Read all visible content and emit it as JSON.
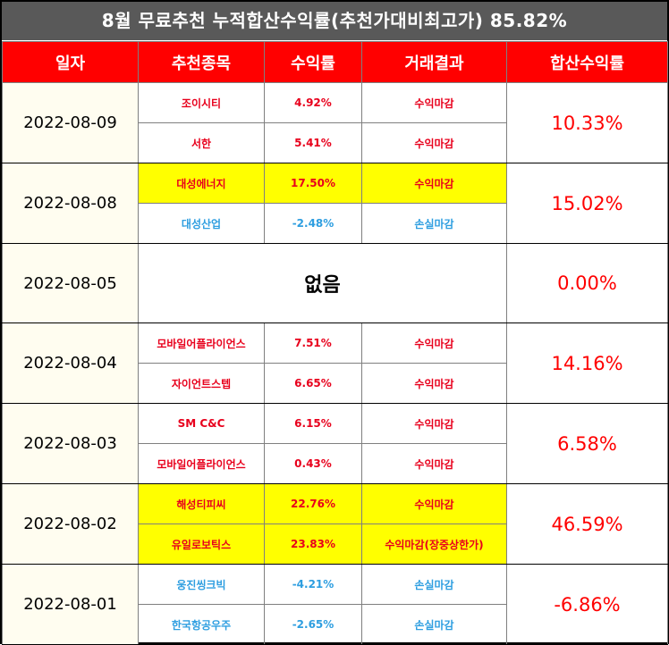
{
  "title": "8월 무료추천 누적합산수익률(추천가대비최고가) 85.82%",
  "columns": [
    "일자",
    "추천종목",
    "수익률",
    "거래결과",
    "합산수익률"
  ],
  "groups": [
    {
      "date": "2022-08-09",
      "total": "10.33%",
      "total_trend": "up",
      "rows": [
        {
          "stock": "조이시티",
          "rate": "4.92%",
          "result": "수익마감",
          "trend": "up",
          "highlight": false
        },
        {
          "stock": "서한",
          "rate": "5.41%",
          "result": "수익마감",
          "trend": "up",
          "highlight": false
        }
      ]
    },
    {
      "date": "2022-08-08",
      "total": "15.02%",
      "total_trend": "up",
      "rows": [
        {
          "stock": "대성에너지",
          "rate": "17.50%",
          "result": "수익마감",
          "trend": "up",
          "highlight": true
        },
        {
          "stock": "대성산업",
          "rate": "-2.48%",
          "result": "손실마감",
          "trend": "down",
          "highlight": false
        }
      ]
    },
    {
      "date": "2022-08-05",
      "total": "0.00%",
      "total_trend": "up",
      "none_label": "없음",
      "rows": []
    },
    {
      "date": "2022-08-04",
      "total": "14.16%",
      "total_trend": "up",
      "rows": [
        {
          "stock": "모바일어플라이언스",
          "rate": "7.51%",
          "result": "수익마감",
          "trend": "up",
          "highlight": false
        },
        {
          "stock": "자이언트스텝",
          "rate": "6.65%",
          "result": "수익마감",
          "trend": "up",
          "highlight": false
        }
      ]
    },
    {
      "date": "2022-08-03",
      "total": "6.58%",
      "total_trend": "up",
      "rows": [
        {
          "stock": "SM C&C",
          "rate": "6.15%",
          "result": "수익마감",
          "trend": "up",
          "highlight": false
        },
        {
          "stock": "모바일어플라이언스",
          "rate": "0.43%",
          "result": "수익마감",
          "trend": "up",
          "highlight": false
        }
      ]
    },
    {
      "date": "2022-08-02",
      "total": "46.59%",
      "total_trend": "up",
      "rows": [
        {
          "stock": "해성티피씨",
          "rate": "22.76%",
          "result": "수익마감",
          "trend": "up",
          "highlight": true
        },
        {
          "stock": "유일로보틱스",
          "rate": "23.83%",
          "result": "수익마감(장중상한가)",
          "trend": "up",
          "highlight": true
        }
      ]
    },
    {
      "date": "2022-08-01",
      "total": "-6.86%",
      "total_trend": "down",
      "rows": [
        {
          "stock": "웅진씽크빅",
          "rate": "-4.21%",
          "result": "손실마감",
          "trend": "down",
          "highlight": false
        },
        {
          "stock": "한국항공우주",
          "rate": "-2.65%",
          "result": "손실마감",
          "trend": "down",
          "highlight": false
        }
      ]
    }
  ],
  "colors": {
    "header_bg": "#ff0000",
    "title_bg": "#595959",
    "profit": "#e8001c",
    "loss": "#2e9ee0",
    "highlight": "#ffff00",
    "date_bg": "#fffdf0"
  }
}
